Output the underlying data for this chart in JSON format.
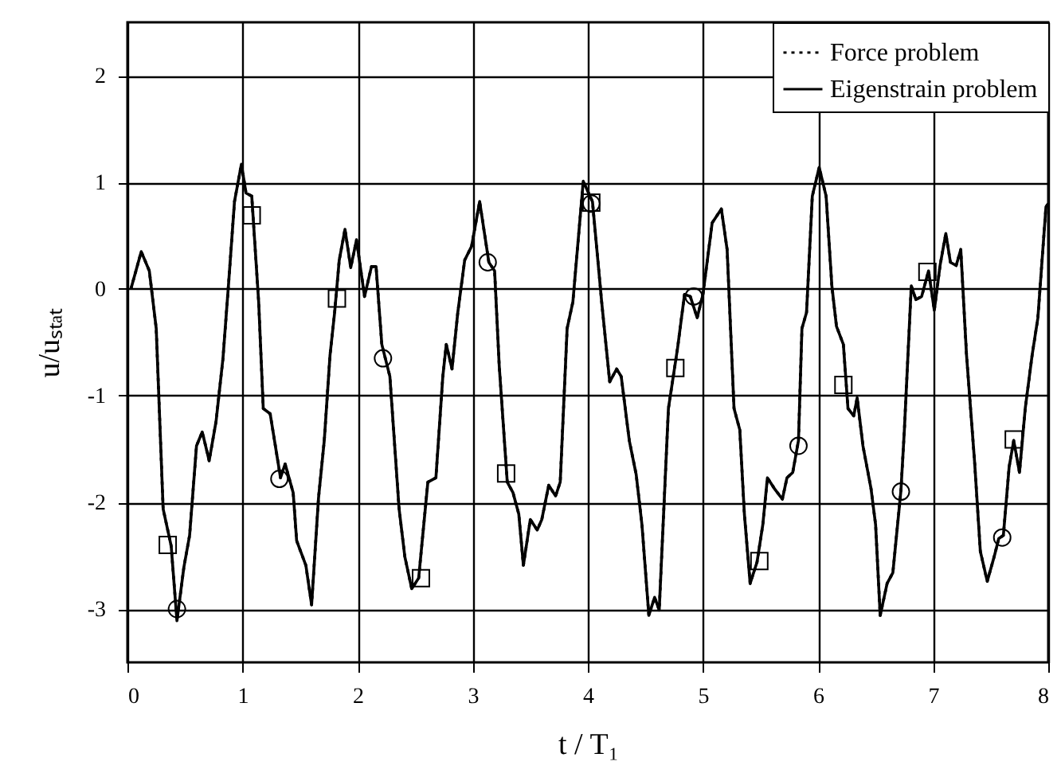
{
  "chart_data": {
    "type": "line",
    "xlabel": "t / T₁",
    "ylabel": "u/uₛₜₐₜ",
    "xlim": [
      0,
      8
    ],
    "ylim": [
      -3.5,
      2.5
    ],
    "xticks": [
      0,
      1,
      2,
      3,
      4,
      5,
      6,
      7,
      8
    ],
    "yticks": [
      -3,
      -2,
      -1,
      0,
      1,
      2
    ],
    "grid": true,
    "legend": "top right",
    "x": [
      0.03,
      0.12,
      0.19,
      0.25,
      0.31,
      0.38,
      0.43,
      0.49,
      0.54,
      0.6,
      0.65,
      0.71,
      0.77,
      0.83,
      0.88,
      0.93,
      0.99,
      1.03,
      1.08,
      1.14,
      1.18,
      1.24,
      1.3,
      1.33,
      1.37,
      1.44,
      1.47,
      1.55,
      1.6,
      1.66,
      1.71,
      1.76,
      1.8,
      1.84,
      1.89,
      1.94,
      1.99,
      2.06,
      2.12,
      2.16,
      2.21,
      2.28,
      2.36,
      2.41,
      2.47,
      2.53,
      2.61,
      2.68,
      2.74,
      2.77,
      2.82,
      2.87,
      2.93,
      2.99,
      3.06,
      3.14,
      3.19,
      3.23,
      3.3,
      3.35,
      3.4,
      3.44,
      3.5,
      3.56,
      3.6,
      3.66,
      3.72,
      3.76,
      3.82,
      3.87,
      3.96,
      4.04,
      4.12,
      4.19,
      4.25,
      4.29,
      4.36,
      4.42,
      4.47,
      4.53,
      4.58,
      4.62,
      4.7,
      4.78,
      4.84,
      4.89,
      4.95,
      5.0,
      5.08,
      5.16,
      5.21,
      5.27,
      5.32,
      5.36,
      5.41,
      5.47,
      5.52,
      5.56,
      5.62,
      5.69,
      5.73,
      5.78,
      5.83,
      5.86,
      5.9,
      5.95,
      6.01,
      6.07,
      6.12,
      6.16,
      6.22,
      6.26,
      6.31,
      6.34,
      6.39,
      6.46,
      6.5,
      6.54,
      6.6,
      6.65,
      6.72,
      6.75,
      6.81,
      6.85,
      6.9,
      6.96,
      7.01,
      7.06,
      7.11,
      7.15,
      7.2,
      7.24,
      7.29,
      7.36,
      7.41,
      7.47,
      7.53,
      7.57,
      7.61,
      7.66,
      7.7,
      7.75,
      7.8,
      7.86,
      7.91,
      7.98,
      8.0
    ],
    "series": [
      {
        "name": "Eigenstrain problem",
        "color": "#000000",
        "line_style": "solid",
        "values": [
          0.0,
          0.35,
          0.17,
          -0.37,
          -2.06,
          -2.41,
          -3.11,
          -2.61,
          -2.31,
          -1.47,
          -1.34,
          -1.61,
          -1.24,
          -0.65,
          0.07,
          0.82,
          1.17,
          0.9,
          0.87,
          -0.12,
          -1.12,
          -1.17,
          -1.57,
          -1.77,
          -1.64,
          -1.91,
          -2.36,
          -2.59,
          -2.96,
          -1.96,
          -1.42,
          -0.62,
          -0.22,
          0.27,
          0.56,
          0.2,
          0.46,
          -0.07,
          0.21,
          0.21,
          -0.52,
          -0.82,
          -2.06,
          -2.51,
          -2.81,
          -2.71,
          -1.81,
          -1.77,
          -0.82,
          -0.52,
          -0.75,
          -0.22,
          0.27,
          0.4,
          0.82,
          0.25,
          0.17,
          -0.72,
          -1.81,
          -1.91,
          -2.11,
          -2.59,
          -2.16,
          -2.26,
          -2.16,
          -1.84,
          -1.94,
          -1.81,
          -0.37,
          -0.12,
          1.01,
          0.82,
          -0.12,
          -0.87,
          -0.75,
          -0.82,
          -1.42,
          -1.74,
          -2.21,
          -3.06,
          -2.89,
          -3.01,
          -1.12,
          -0.55,
          -0.05,
          -0.07,
          -0.27,
          -0.05,
          0.62,
          0.75,
          0.37,
          -1.12,
          -1.32,
          -2.11,
          -2.76,
          -2.56,
          -2.21,
          -1.77,
          -1.87,
          -1.97,
          -1.77,
          -1.72,
          -1.42,
          -0.37,
          -0.22,
          0.87,
          1.14,
          0.87,
          0.03,
          -0.35,
          -0.52,
          -1.12,
          -1.19,
          -1.02,
          -1.47,
          -1.87,
          -2.21,
          -3.06,
          -2.76,
          -2.66,
          -1.89,
          -1.32,
          0.03,
          -0.1,
          -0.07,
          0.17,
          -0.2,
          0.22,
          0.52,
          0.25,
          0.22,
          0.37,
          -0.62,
          -1.62,
          -2.46,
          -2.74,
          -2.51,
          -2.34,
          -2.31,
          -1.67,
          -1.42,
          -1.72,
          -1.12,
          -0.62,
          -0.27,
          0.77,
          0.8
        ]
      },
      {
        "name": "Force problem",
        "color": "#000000",
        "line_style": "dotted",
        "values": [
          0.0,
          0.35,
          0.17,
          -0.37,
          -2.06,
          -2.41,
          -3.11,
          -2.61,
          -2.31,
          -1.47,
          -1.34,
          -1.61,
          -1.24,
          -0.65,
          0.07,
          0.82,
          1.17,
          0.9,
          0.87,
          -0.12,
          -1.12,
          -1.17,
          -1.57,
          -1.77,
          -1.64,
          -1.91,
          -2.36,
          -2.59,
          -2.96,
          -1.96,
          -1.42,
          -0.62,
          -0.22,
          0.27,
          0.56,
          0.2,
          0.46,
          -0.07,
          0.21,
          0.21,
          -0.52,
          -0.82,
          -2.06,
          -2.51,
          -2.81,
          -2.71,
          -1.81,
          -1.77,
          -0.82,
          -0.52,
          -0.75,
          -0.22,
          0.27,
          0.4,
          0.82,
          0.25,
          0.17,
          -0.72,
          -1.81,
          -1.91,
          -2.11,
          -2.59,
          -2.16,
          -2.26,
          -2.16,
          -1.84,
          -1.94,
          -1.81,
          -0.37,
          -0.12,
          1.01,
          0.82,
          -0.12,
          -0.87,
          -0.75,
          -0.82,
          -1.42,
          -1.74,
          -2.21,
          -3.06,
          -2.89,
          -3.01,
          -1.12,
          -0.55,
          -0.05,
          -0.07,
          -0.27,
          -0.05,
          0.62,
          0.75,
          0.37,
          -1.12,
          -1.32,
          -2.11,
          -2.76,
          -2.56,
          -2.21,
          -1.77,
          -1.87,
          -1.97,
          -1.77,
          -1.72,
          -1.42,
          -0.37,
          -0.22,
          0.87,
          1.14,
          0.87,
          0.03,
          -0.35,
          -0.52,
          -1.12,
          -1.19,
          -1.02,
          -1.47,
          -1.87,
          -2.21,
          -3.06,
          -2.76,
          -2.66,
          -1.89,
          -1.32,
          0.03,
          -0.1,
          -0.07,
          0.17,
          -0.2,
          0.22,
          0.52,
          0.25,
          0.22,
          0.37,
          -0.62,
          -1.62,
          -2.46,
          -2.74,
          -2.51,
          -2.34,
          -2.31,
          -1.67,
          -1.42,
          -1.72,
          -1.12,
          -0.62,
          -0.27,
          0.77,
          0.8
        ]
      },
      {
        "type": "scatter",
        "marker": "circle",
        "color": "#000000",
        "x": [
          0.43,
          1.32,
          2.22,
          3.13,
          4.03,
          4.92,
          5.83,
          6.72,
          7.6
        ],
        "values": [
          -3.0,
          -1.78,
          -0.65,
          0.25,
          0.8,
          -0.07,
          -1.47,
          -1.9,
          -2.33
        ]
      },
      {
        "type": "scatter",
        "marker": "square",
        "color": "#000000",
        "x": [
          0.35,
          1.08,
          1.82,
          2.55,
          3.29,
          4.03,
          4.76,
          5.49,
          6.22,
          6.95,
          7.7
        ],
        "values": [
          -2.4,
          0.69,
          -0.09,
          -2.71,
          -1.73,
          0.81,
          -0.74,
          -2.55,
          -0.9,
          0.16,
          -1.41
        ]
      }
    ]
  }
}
